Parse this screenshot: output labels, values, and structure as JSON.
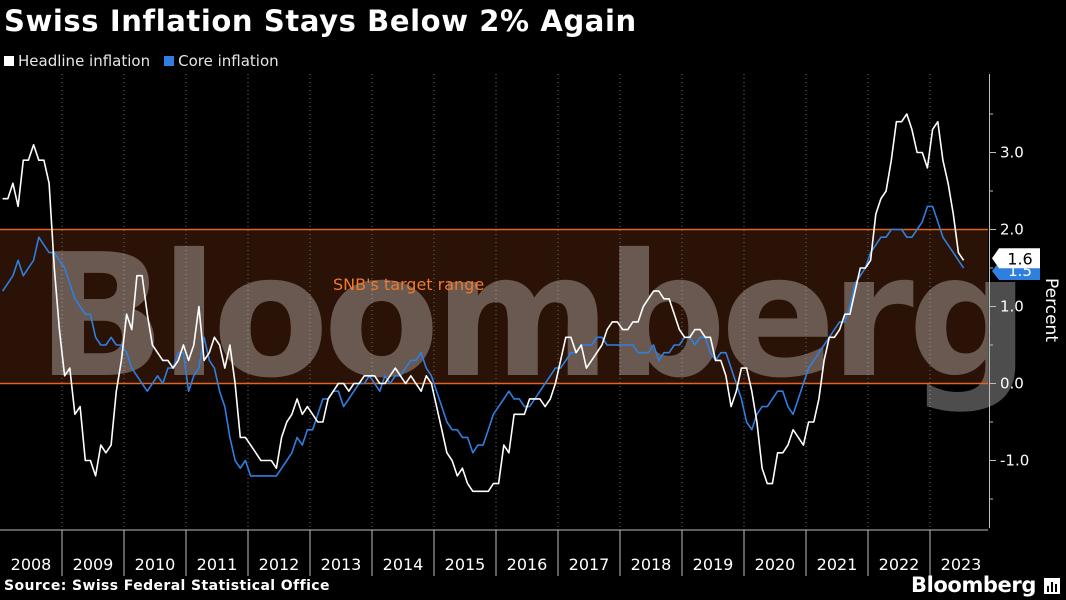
{
  "header": {
    "title": "Swiss Inflation Stays Below 2% Again"
  },
  "footer": {
    "source": "Source: Swiss Federal Statistical Office",
    "brand": "Bloomberg"
  },
  "watermark": "Bloomberg",
  "colors": {
    "headline": "#ffffff",
    "core": "#2f7fe0",
    "band_fill": "#2a1206",
    "band_edge": "#e2651f",
    "grid": "#6b6b6b",
    "annotation": "#f07b2e"
  },
  "chart_data": {
    "type": "line",
    "title": "Swiss Inflation Stays Below 2% Again",
    "xlabel": "",
    "ylabel": "Percent",
    "x_start": "2008-01",
    "x_frequency": "monthly",
    "x_tick_labels": [
      "2008",
      "2009",
      "2010",
      "2011",
      "2012",
      "2013",
      "2014",
      "2015",
      "2016",
      "2017",
      "2018",
      "2019",
      "2020",
      "2021",
      "2022",
      "2023"
    ],
    "y_ticks": [
      -1.0,
      0.0,
      1.0,
      2.0,
      3.0
    ],
    "y_tick_labels": [
      "-1.0",
      "0.0",
      "1.0",
      "2.0",
      "3.0"
    ],
    "ylim": [
      -1.9,
      3.9
    ],
    "grid": "vertical dotted",
    "legend_position": "top-left",
    "target_band": {
      "label": "SNB's target range",
      "low": 0.0,
      "high": 2.0
    },
    "last_value_labels": [
      {
        "series": "Headline inflation",
        "value": "1.6"
      },
      {
        "series": "Core inflation",
        "value": "1.5"
      }
    ],
    "series": [
      {
        "name": "Headline inflation",
        "values": [
          2.4,
          2.4,
          2.6,
          2.3,
          2.9,
          2.9,
          3.1,
          2.9,
          2.9,
          2.6,
          1.5,
          0.7,
          0.1,
          0.2,
          -0.4,
          -0.3,
          -1.0,
          -1.0,
          -1.2,
          -0.8,
          -0.9,
          -0.8,
          -0.1,
          0.3,
          0.9,
          0.7,
          1.4,
          1.4,
          0.9,
          0.5,
          0.4,
          0.3,
          0.3,
          0.2,
          0.3,
          0.5,
          0.3,
          0.5,
          1.0,
          0.3,
          0.4,
          0.6,
          0.5,
          0.2,
          0.5,
          0.0,
          -0.7,
          -0.7,
          -0.8,
          -0.9,
          -1.0,
          -1.0,
          -1.0,
          -1.1,
          -0.7,
          -0.5,
          -0.4,
          -0.2,
          -0.4,
          -0.3,
          -0.4,
          -0.5,
          -0.5,
          -0.2,
          -0.1,
          0.0,
          0.0,
          -0.1,
          0.0,
          0.0,
          0.1,
          0.1,
          0.1,
          0.0,
          0.0,
          0.1,
          0.2,
          0.1,
          0.0,
          0.1,
          0.0,
          -0.1,
          0.1,
          0.0,
          -0.3,
          -0.6,
          -0.9,
          -1.0,
          -1.2,
          -1.1,
          -1.3,
          -1.4,
          -1.4,
          -1.4,
          -1.4,
          -1.3,
          -1.3,
          -0.8,
          -0.9,
          -0.4,
          -0.4,
          -0.4,
          -0.2,
          -0.2,
          -0.2,
          -0.3,
          -0.2,
          0.0,
          0.3,
          0.6,
          0.6,
          0.4,
          0.5,
          0.2,
          0.3,
          0.4,
          0.5,
          0.7,
          0.8,
          0.8,
          0.7,
          0.7,
          0.8,
          0.8,
          1.0,
          1.1,
          1.2,
          1.2,
          1.1,
          1.1,
          0.9,
          0.7,
          0.6,
          0.6,
          0.7,
          0.7,
          0.6,
          0.6,
          0.3,
          0.3,
          0.1,
          -0.3,
          -0.1,
          0.2,
          0.2,
          -0.1,
          -0.5,
          -1.1,
          -1.3,
          -1.3,
          -0.9,
          -0.9,
          -0.8,
          -0.6,
          -0.7,
          -0.8,
          -0.5,
          -0.5,
          -0.2,
          0.3,
          0.6,
          0.6,
          0.7,
          0.9,
          0.9,
          1.2,
          1.5,
          1.5,
          1.6,
          2.2,
          2.4,
          2.5,
          2.9,
          3.4,
          3.4,
          3.5,
          3.3,
          3.0,
          3.0,
          2.8,
          3.3,
          3.4,
          2.9,
          2.6,
          2.2,
          1.7,
          1.6
        ]
      },
      {
        "name": "Core inflation",
        "values": [
          1.2,
          1.3,
          1.4,
          1.6,
          1.4,
          1.5,
          1.6,
          1.9,
          1.8,
          1.7,
          1.7,
          1.6,
          1.5,
          1.3,
          1.1,
          1.0,
          0.9,
          0.9,
          0.6,
          0.5,
          0.5,
          0.6,
          0.5,
          0.5,
          0.4,
          0.2,
          0.1,
          0.0,
          -0.1,
          0.0,
          0.1,
          0.0,
          0.2,
          0.2,
          0.4,
          0.4,
          -0.1,
          0.1,
          0.2,
          0.6,
          0.3,
          0.2,
          -0.1,
          -0.3,
          -0.7,
          -1.0,
          -1.1,
          -1.0,
          -1.2,
          -1.2,
          -1.2,
          -1.2,
          -1.2,
          -1.2,
          -1.1,
          -1.0,
          -0.9,
          -0.7,
          -0.8,
          -0.6,
          -0.6,
          -0.4,
          -0.2,
          -0.2,
          -0.1,
          -0.1,
          -0.3,
          -0.2,
          -0.1,
          0.0,
          0.0,
          0.1,
          0.0,
          -0.1,
          0.1,
          0.0,
          0.1,
          0.1,
          0.2,
          0.3,
          0.3,
          0.4,
          0.2,
          0.1,
          -0.1,
          -0.3,
          -0.5,
          -0.6,
          -0.6,
          -0.7,
          -0.7,
          -0.9,
          -0.8,
          -0.8,
          -0.6,
          -0.4,
          -0.3,
          -0.2,
          -0.1,
          -0.2,
          -0.2,
          -0.3,
          -0.3,
          -0.2,
          -0.1,
          0.0,
          0.1,
          0.2,
          0.2,
          0.3,
          0.4,
          0.4,
          0.5,
          0.5,
          0.5,
          0.6,
          0.6,
          0.5,
          0.5,
          0.5,
          0.5,
          0.5,
          0.5,
          0.4,
          0.4,
          0.4,
          0.5,
          0.3,
          0.4,
          0.4,
          0.5,
          0.5,
          0.6,
          0.6,
          0.5,
          0.6,
          0.6,
          0.4,
          0.3,
          0.4,
          0.4,
          0.2,
          0.0,
          -0.2,
          -0.5,
          -0.6,
          -0.4,
          -0.3,
          -0.3,
          -0.2,
          -0.1,
          -0.1,
          -0.3,
          -0.4,
          -0.2,
          0.0,
          0.2,
          0.3,
          0.4,
          0.5,
          0.6,
          0.7,
          0.8,
          0.8,
          1.0,
          1.3,
          1.4,
          1.5,
          1.7,
          1.8,
          1.9,
          1.9,
          2.0,
          2.0,
          2.0,
          1.9,
          1.9,
          2.0,
          2.1,
          2.3,
          2.3,
          2.1,
          1.9,
          1.8,
          1.7,
          1.6,
          1.5
        ]
      }
    ]
  }
}
